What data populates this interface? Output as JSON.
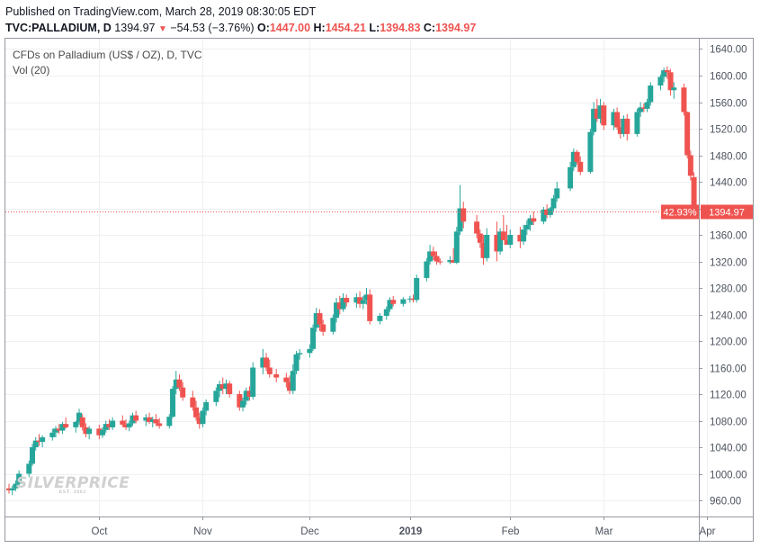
{
  "header": {
    "published": "Published on TradingView.com, March 28, 2019 08:30:05 EDT",
    "symbol": "TVC:PALLADIUM, D",
    "last": "1394.97",
    "change": "−54.53 (−3.76%)",
    "o_label": "O:",
    "o_value": "1447.00",
    "h_label": "H:",
    "h_value": "1454.21",
    "l_label": "L:",
    "l_value": "1394.83",
    "c_label": "C:",
    "c_value": "1394.97"
  },
  "legend": {
    "title": "CFDs on Palladium (US$ / OZ), D, TVC",
    "indicator": "Vol (20)"
  },
  "watermark": {
    "logo": "SILVERPRICE",
    "sub": "EST. 2002"
  },
  "price_label": {
    "percent": "42.93%",
    "price": "1394.97"
  },
  "colors": {
    "up": "#26a69a",
    "down": "#ef5350",
    "grid": "#eef0f3",
    "axis_text": "#4c525e"
  },
  "chart_data": {
    "type": "candlestick",
    "title": "CFDs on Palladium (US$ / OZ), D, TVC",
    "xlabel": "",
    "ylabel": "",
    "ylim": [
      928,
      1652
    ],
    "y_ticks": [
      960,
      1000,
      1040,
      1080,
      1120,
      1160,
      1200,
      1240,
      1280,
      1320,
      1360,
      1400,
      1440,
      1480,
      1520,
      1560,
      1600,
      1640
    ],
    "x_ticks": [
      {
        "label": "Oct",
        "date": "2018-10-01"
      },
      {
        "label": "Nov",
        "date": "2018-11-01"
      },
      {
        "label": "Dec",
        "date": "2018-12-03"
      },
      {
        "label": "2019",
        "date": "2019-01-02"
      },
      {
        "label": "Feb",
        "date": "2019-02-01"
      },
      {
        "label": "Mar",
        "date": "2019-03-01"
      },
      {
        "label": "Apr",
        "date": "2019-04-01"
      }
    ],
    "last_price": 1394.97,
    "candles": [
      {
        "d": "2018-09-04",
        "o": 978,
        "h": 985,
        "l": 970,
        "c": 975
      },
      {
        "d": "2018-09-05",
        "o": 975,
        "h": 982,
        "l": 968,
        "c": 978
      },
      {
        "d": "2018-09-06",
        "o": 978,
        "h": 990,
        "l": 974,
        "c": 985
      },
      {
        "d": "2018-09-07",
        "o": 985,
        "h": 1005,
        "l": 980,
        "c": 1000
      },
      {
        "d": "2018-09-10",
        "o": 1000,
        "h": 1020,
        "l": 995,
        "c": 1015
      },
      {
        "d": "2018-09-11",
        "o": 1015,
        "h": 1045,
        "l": 1012,
        "c": 1040
      },
      {
        "d": "2018-09-12",
        "o": 1040,
        "h": 1055,
        "l": 1035,
        "c": 1050
      },
      {
        "d": "2018-09-13",
        "o": 1050,
        "h": 1060,
        "l": 1042,
        "c": 1048
      },
      {
        "d": "2018-09-14",
        "o": 1048,
        "h": 1058,
        "l": 1040,
        "c": 1055
      },
      {
        "d": "2018-09-17",
        "o": 1055,
        "h": 1068,
        "l": 1050,
        "c": 1062
      },
      {
        "d": "2018-09-18",
        "o": 1062,
        "h": 1072,
        "l": 1055,
        "c": 1068
      },
      {
        "d": "2018-09-19",
        "o": 1068,
        "h": 1075,
        "l": 1060,
        "c": 1065
      },
      {
        "d": "2018-09-20",
        "o": 1065,
        "h": 1078,
        "l": 1060,
        "c": 1075
      },
      {
        "d": "2018-09-21",
        "o": 1075,
        "h": 1085,
        "l": 1068,
        "c": 1070
      },
      {
        "d": "2018-09-24",
        "o": 1070,
        "h": 1080,
        "l": 1062,
        "c": 1078
      },
      {
        "d": "2018-09-25",
        "o": 1078,
        "h": 1098,
        "l": 1074,
        "c": 1092
      },
      {
        "d": "2018-09-26",
        "o": 1085,
        "h": 1090,
        "l": 1065,
        "c": 1070
      },
      {
        "d": "2018-09-27",
        "o": 1070,
        "h": 1076,
        "l": 1055,
        "c": 1060
      },
      {
        "d": "2018-09-28",
        "o": 1060,
        "h": 1072,
        "l": 1052,
        "c": 1068
      },
      {
        "d": "2018-10-01",
        "o": 1068,
        "h": 1074,
        "l": 1052,
        "c": 1058
      },
      {
        "d": "2018-10-02",
        "o": 1058,
        "h": 1070,
        "l": 1054,
        "c": 1066
      },
      {
        "d": "2018-10-03",
        "o": 1066,
        "h": 1080,
        "l": 1062,
        "c": 1075
      },
      {
        "d": "2018-10-04",
        "o": 1075,
        "h": 1082,
        "l": 1066,
        "c": 1070
      },
      {
        "d": "2018-10-05",
        "o": 1070,
        "h": 1085,
        "l": 1066,
        "c": 1080
      },
      {
        "d": "2018-10-08",
        "o": 1080,
        "h": 1088,
        "l": 1070,
        "c": 1074
      },
      {
        "d": "2018-10-09",
        "o": 1074,
        "h": 1082,
        "l": 1066,
        "c": 1070
      },
      {
        "d": "2018-10-10",
        "o": 1070,
        "h": 1080,
        "l": 1064,
        "c": 1076
      },
      {
        "d": "2018-10-11",
        "o": 1076,
        "h": 1092,
        "l": 1072,
        "c": 1088
      },
      {
        "d": "2018-10-12",
        "o": 1088,
        "h": 1095,
        "l": 1076,
        "c": 1080
      },
      {
        "d": "2018-10-15",
        "o": 1080,
        "h": 1090,
        "l": 1072,
        "c": 1085
      },
      {
        "d": "2018-10-16",
        "o": 1085,
        "h": 1092,
        "l": 1075,
        "c": 1078
      },
      {
        "d": "2018-10-17",
        "o": 1078,
        "h": 1086,
        "l": 1070,
        "c": 1082
      },
      {
        "d": "2018-10-18",
        "o": 1082,
        "h": 1090,
        "l": 1072,
        "c": 1076
      },
      {
        "d": "2018-10-19",
        "o": 1076,
        "h": 1084,
        "l": 1068,
        "c": 1072
      },
      {
        "d": "2018-10-22",
        "o": 1072,
        "h": 1090,
        "l": 1068,
        "c": 1086
      },
      {
        "d": "2018-10-23",
        "o": 1086,
        "h": 1132,
        "l": 1084,
        "c": 1128
      },
      {
        "d": "2018-10-24",
        "o": 1128,
        "h": 1155,
        "l": 1120,
        "c": 1142
      },
      {
        "d": "2018-10-25",
        "o": 1142,
        "h": 1150,
        "l": 1125,
        "c": 1130
      },
      {
        "d": "2018-10-26",
        "o": 1130,
        "h": 1138,
        "l": 1110,
        "c": 1115
      },
      {
        "d": "2018-10-29",
        "o": 1115,
        "h": 1125,
        "l": 1095,
        "c": 1100
      },
      {
        "d": "2018-10-30",
        "o": 1100,
        "h": 1110,
        "l": 1080,
        "c": 1085
      },
      {
        "d": "2018-10-31",
        "o": 1085,
        "h": 1092,
        "l": 1068,
        "c": 1075
      },
      {
        "d": "2018-11-01",
        "o": 1075,
        "h": 1100,
        "l": 1070,
        "c": 1095
      },
      {
        "d": "2018-11-02",
        "o": 1095,
        "h": 1112,
        "l": 1088,
        "c": 1108
      },
      {
        "d": "2018-11-05",
        "o": 1108,
        "h": 1130,
        "l": 1102,
        "c": 1125
      },
      {
        "d": "2018-11-06",
        "o": 1125,
        "h": 1140,
        "l": 1115,
        "c": 1135
      },
      {
        "d": "2018-11-07",
        "o": 1135,
        "h": 1145,
        "l": 1120,
        "c": 1128
      },
      {
        "d": "2018-11-08",
        "o": 1128,
        "h": 1142,
        "l": 1120,
        "c": 1136
      },
      {
        "d": "2018-11-09",
        "o": 1136,
        "h": 1140,
        "l": 1115,
        "c": 1120
      },
      {
        "d": "2018-11-12",
        "o": 1120,
        "h": 1125,
        "l": 1095,
        "c": 1100
      },
      {
        "d": "2018-11-13",
        "o": 1100,
        "h": 1115,
        "l": 1094,
        "c": 1110
      },
      {
        "d": "2018-11-14",
        "o": 1110,
        "h": 1130,
        "l": 1104,
        "c": 1125
      },
      {
        "d": "2018-11-15",
        "o": 1125,
        "h": 1132,
        "l": 1110,
        "c": 1116
      },
      {
        "d": "2018-11-16",
        "o": 1116,
        "h": 1168,
        "l": 1112,
        "c": 1160
      },
      {
        "d": "2018-11-19",
        "o": 1160,
        "h": 1188,
        "l": 1150,
        "c": 1175
      },
      {
        "d": "2018-11-20",
        "o": 1175,
        "h": 1182,
        "l": 1155,
        "c": 1160
      },
      {
        "d": "2018-11-21",
        "o": 1160,
        "h": 1172,
        "l": 1145,
        "c": 1150
      },
      {
        "d": "2018-11-23",
        "o": 1150,
        "h": 1158,
        "l": 1138,
        "c": 1145
      },
      {
        "d": "2018-11-26",
        "o": 1145,
        "h": 1152,
        "l": 1130,
        "c": 1138
      },
      {
        "d": "2018-11-27",
        "o": 1138,
        "h": 1148,
        "l": 1120,
        "c": 1125
      },
      {
        "d": "2018-11-28",
        "o": 1125,
        "h": 1165,
        "l": 1120,
        "c": 1155
      },
      {
        "d": "2018-11-29",
        "o": 1155,
        "h": 1185,
        "l": 1150,
        "c": 1180
      },
      {
        "d": "2018-11-30",
        "o": 1180,
        "h": 1188,
        "l": 1172,
        "c": 1182
      },
      {
        "d": "2018-12-03",
        "o": 1182,
        "h": 1195,
        "l": 1175,
        "c": 1188
      },
      {
        "d": "2018-12-04",
        "o": 1188,
        "h": 1225,
        "l": 1185,
        "c": 1220
      },
      {
        "d": "2018-12-05",
        "o": 1220,
        "h": 1250,
        "l": 1214,
        "c": 1242
      },
      {
        "d": "2018-12-06",
        "o": 1242,
        "h": 1248,
        "l": 1215,
        "c": 1225
      },
      {
        "d": "2018-12-07",
        "o": 1225,
        "h": 1232,
        "l": 1208,
        "c": 1214
      },
      {
        "d": "2018-12-10",
        "o": 1214,
        "h": 1240,
        "l": 1210,
        "c": 1235
      },
      {
        "d": "2018-12-11",
        "o": 1235,
        "h": 1265,
        "l": 1228,
        "c": 1258
      },
      {
        "d": "2018-12-12",
        "o": 1258,
        "h": 1268,
        "l": 1240,
        "c": 1248
      },
      {
        "d": "2018-12-13",
        "o": 1248,
        "h": 1272,
        "l": 1244,
        "c": 1265
      },
      {
        "d": "2018-12-14",
        "o": 1265,
        "h": 1270,
        "l": 1252,
        "c": 1258
      },
      {
        "d": "2018-12-17",
        "o": 1258,
        "h": 1272,
        "l": 1250,
        "c": 1266
      },
      {
        "d": "2018-12-18",
        "o": 1266,
        "h": 1275,
        "l": 1250,
        "c": 1256
      },
      {
        "d": "2018-12-19",
        "o": 1256,
        "h": 1268,
        "l": 1248,
        "c": 1262
      },
      {
        "d": "2018-12-20",
        "o": 1262,
        "h": 1280,
        "l": 1255,
        "c": 1270
      },
      {
        "d": "2018-12-21",
        "o": 1270,
        "h": 1278,
        "l": 1225,
        "c": 1230
      },
      {
        "d": "2018-12-24",
        "o": 1230,
        "h": 1242,
        "l": 1225,
        "c": 1238
      },
      {
        "d": "2018-12-26",
        "o": 1238,
        "h": 1252,
        "l": 1232,
        "c": 1248
      },
      {
        "d": "2018-12-27",
        "o": 1248,
        "h": 1266,
        "l": 1244,
        "c": 1262
      },
      {
        "d": "2018-12-28",
        "o": 1262,
        "h": 1268,
        "l": 1252,
        "c": 1256
      },
      {
        "d": "2018-12-31",
        "o": 1256,
        "h": 1266,
        "l": 1252,
        "c": 1263
      },
      {
        "d": "2019-01-02",
        "o": 1263,
        "h": 1268,
        "l": 1258,
        "c": 1264
      },
      {
        "d": "2019-01-03",
        "o": 1264,
        "h": 1270,
        "l": 1258,
        "c": 1262
      },
      {
        "d": "2019-01-04",
        "o": 1262,
        "h": 1300,
        "l": 1258,
        "c": 1295
      },
      {
        "d": "2019-01-07",
        "o": 1295,
        "h": 1325,
        "l": 1290,
        "c": 1320
      },
      {
        "d": "2019-01-08",
        "o": 1320,
        "h": 1345,
        "l": 1315,
        "c": 1335
      },
      {
        "d": "2019-01-09",
        "o": 1335,
        "h": 1342,
        "l": 1322,
        "c": 1328
      },
      {
        "d": "2019-01-10",
        "o": 1328,
        "h": 1335,
        "l": 1315,
        "c": 1320
      },
      {
        "d": "2019-01-11",
        "o": 1320,
        "h": 1325,
        "l": 1315,
        "c": 1319
      },
      {
        "d": "2019-01-14",
        "o": 1319,
        "h": 1328,
        "l": 1316,
        "c": 1322
      },
      {
        "d": "2019-01-15",
        "o": 1322,
        "h": 1340,
        "l": 1318,
        "c": 1318
      },
      {
        "d": "2019-01-16",
        "o": 1318,
        "h": 1372,
        "l": 1316,
        "c": 1365
      },
      {
        "d": "2019-01-17",
        "o": 1365,
        "h": 1435,
        "l": 1360,
        "c": 1400
      },
      {
        "d": "2019-01-18",
        "o": 1400,
        "h": 1410,
        "l": 1370,
        "c": 1380
      },
      {
        "d": "2019-01-22",
        "o": 1380,
        "h": 1390,
        "l": 1355,
        "c": 1362
      },
      {
        "d": "2019-01-23",
        "o": 1362,
        "h": 1368,
        "l": 1340,
        "c": 1348
      },
      {
        "d": "2019-01-24",
        "o": 1348,
        "h": 1360,
        "l": 1315,
        "c": 1325
      },
      {
        "d": "2019-01-25",
        "o": 1325,
        "h": 1370,
        "l": 1320,
        "c": 1360
      },
      {
        "d": "2019-01-28",
        "o": 1360,
        "h": 1380,
        "l": 1320,
        "c": 1335
      },
      {
        "d": "2019-01-29",
        "o": 1335,
        "h": 1370,
        "l": 1330,
        "c": 1365
      },
      {
        "d": "2019-01-30",
        "o": 1365,
        "h": 1390,
        "l": 1355,
        "c": 1352
      },
      {
        "d": "2019-01-31",
        "o": 1352,
        "h": 1375,
        "l": 1345,
        "c": 1345
      },
      {
        "d": "2019-02-01",
        "o": 1345,
        "h": 1368,
        "l": 1340,
        "c": 1360
      },
      {
        "d": "2019-02-04",
        "o": 1360,
        "h": 1372,
        "l": 1340,
        "c": 1350
      },
      {
        "d": "2019-02-05",
        "o": 1350,
        "h": 1375,
        "l": 1345,
        "c": 1368
      },
      {
        "d": "2019-02-06",
        "o": 1368,
        "h": 1382,
        "l": 1360,
        "c": 1375
      },
      {
        "d": "2019-02-07",
        "o": 1375,
        "h": 1390,
        "l": 1366,
        "c": 1385
      },
      {
        "d": "2019-02-08",
        "o": 1385,
        "h": 1395,
        "l": 1375,
        "c": 1380
      },
      {
        "d": "2019-02-11",
        "o": 1380,
        "h": 1402,
        "l": 1376,
        "c": 1398
      },
      {
        "d": "2019-02-12",
        "o": 1398,
        "h": 1406,
        "l": 1385,
        "c": 1390
      },
      {
        "d": "2019-02-13",
        "o": 1390,
        "h": 1402,
        "l": 1386,
        "c": 1400
      },
      {
        "d": "2019-02-14",
        "o": 1400,
        "h": 1420,
        "l": 1396,
        "c": 1415
      },
      {
        "d": "2019-02-15",
        "o": 1415,
        "h": 1440,
        "l": 1410,
        "c": 1430
      },
      {
        "d": "2019-02-19",
        "o": 1430,
        "h": 1470,
        "l": 1426,
        "c": 1462
      },
      {
        "d": "2019-02-20",
        "o": 1462,
        "h": 1490,
        "l": 1456,
        "c": 1485
      },
      {
        "d": "2019-02-21",
        "o": 1485,
        "h": 1488,
        "l": 1466,
        "c": 1470
      },
      {
        "d": "2019-02-22",
        "o": 1470,
        "h": 1478,
        "l": 1450,
        "c": 1455
      },
      {
        "d": "2019-02-25",
        "o": 1455,
        "h": 1520,
        "l": 1452,
        "c": 1515
      },
      {
        "d": "2019-02-26",
        "o": 1515,
        "h": 1560,
        "l": 1510,
        "c": 1550
      },
      {
        "d": "2019-02-27",
        "o": 1550,
        "h": 1565,
        "l": 1530,
        "c": 1535
      },
      {
        "d": "2019-02-28",
        "o": 1535,
        "h": 1565,
        "l": 1528,
        "c": 1555
      },
      {
        "d": "2019-03-01",
        "o": 1555,
        "h": 1560,
        "l": 1518,
        "c": 1525
      },
      {
        "d": "2019-03-04",
        "o": 1525,
        "h": 1550,
        "l": 1518,
        "c": 1545
      },
      {
        "d": "2019-03-05",
        "o": 1545,
        "h": 1552,
        "l": 1518,
        "c": 1522
      },
      {
        "d": "2019-03-06",
        "o": 1522,
        "h": 1535,
        "l": 1505,
        "c": 1512
      },
      {
        "d": "2019-03-07",
        "o": 1512,
        "h": 1540,
        "l": 1508,
        "c": 1535
      },
      {
        "d": "2019-03-08",
        "o": 1535,
        "h": 1542,
        "l": 1502,
        "c": 1512
      },
      {
        "d": "2019-03-11",
        "o": 1512,
        "h": 1550,
        "l": 1508,
        "c": 1545
      },
      {
        "d": "2019-03-12",
        "o": 1545,
        "h": 1560,
        "l": 1538,
        "c": 1552
      },
      {
        "d": "2019-03-13",
        "o": 1552,
        "h": 1558,
        "l": 1545,
        "c": 1550
      },
      {
        "d": "2019-03-14",
        "o": 1550,
        "h": 1565,
        "l": 1545,
        "c": 1560
      },
      {
        "d": "2019-03-15",
        "o": 1560,
        "h": 1590,
        "l": 1555,
        "c": 1585
      },
      {
        "d": "2019-03-18",
        "o": 1585,
        "h": 1602,
        "l": 1578,
        "c": 1598
      },
      {
        "d": "2019-03-19",
        "o": 1598,
        "h": 1612,
        "l": 1590,
        "c": 1608
      },
      {
        "d": "2019-03-20",
        "o": 1608,
        "h": 1614,
        "l": 1595,
        "c": 1605
      },
      {
        "d": "2019-03-21",
        "o": 1605,
        "h": 1610,
        "l": 1570,
        "c": 1578
      },
      {
        "d": "2019-03-22",
        "o": 1578,
        "h": 1590,
        "l": 1565,
        "c": 1582
      },
      {
        "d": "2019-03-25",
        "o": 1582,
        "h": 1588,
        "l": 1540,
        "c": 1545
      },
      {
        "d": "2019-03-26",
        "o": 1545,
        "h": 1546,
        "l": 1475,
        "c": 1480
      },
      {
        "d": "2019-03-27",
        "o": 1480,
        "h": 1487,
        "l": 1442,
        "c": 1449
      },
      {
        "d": "2019-03-28",
        "o": 1447,
        "h": 1454.21,
        "l": 1394.83,
        "c": 1394.97
      }
    ]
  }
}
